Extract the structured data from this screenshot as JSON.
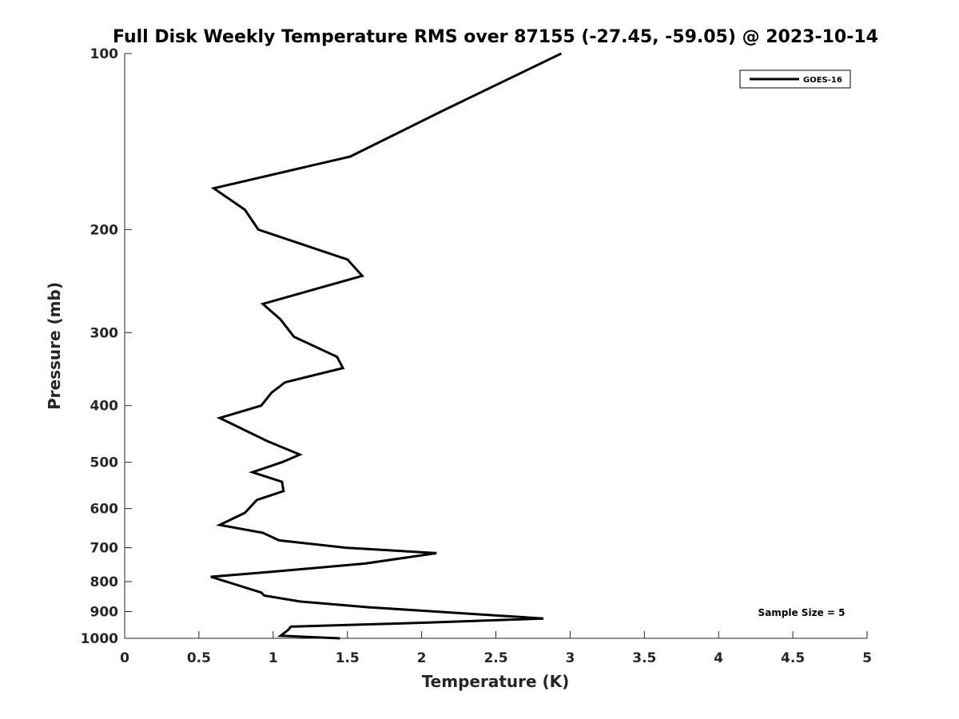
{
  "chart_data": {
    "type": "line",
    "title": "Full Disk Weekly Temperature RMS over 87155 (-27.45, -59.05) @ 2023-10-14",
    "xlabel": "Temperature (K)",
    "ylabel": "Pressure (mb)",
    "xlim": [
      0,
      5
    ],
    "ylim": [
      100,
      1000
    ],
    "y_scale": "log",
    "y_reversed": true,
    "x_ticks": [
      "0",
      "0.5",
      "1",
      "1.5",
      "2",
      "2.5",
      "3",
      "3.5",
      "4",
      "4.5",
      "5"
    ],
    "y_ticks": [
      "100",
      "200",
      "300",
      "400",
      "500",
      "600",
      "700",
      "800",
      "900",
      "1000"
    ],
    "grid": false,
    "legend_position": "top-right",
    "annotation": "Sample Size = 5",
    "series": [
      {
        "name": "GOES-16",
        "color": "#000000",
        "x": [
          2.94,
          2.15,
          1.52,
          0.6,
          0.81,
          0.9,
          1.5,
          1.6,
          0.93,
          1.05,
          1.14,
          1.43,
          1.47,
          1.08,
          0.99,
          0.92,
          0.64,
          0.96,
          1.18,
          1.06,
          0.86,
          1.06,
          1.07,
          0.89,
          0.81,
          0.64,
          0.93,
          1.04,
          1.49,
          2.1,
          1.62,
          0.98,
          0.58,
          0.92,
          0.94,
          1.18,
          1.65,
          2.82,
          2.05,
          1.12,
          1.1,
          1.05,
          1.45
        ],
        "y": [
          100,
          125,
          150,
          170,
          185,
          200,
          225,
          240,
          268,
          285,
          305,
          330,
          345,
          365,
          380,
          400,
          420,
          460,
          485,
          500,
          520,
          540,
          560,
          580,
          610,
          640,
          660,
          680,
          700,
          715,
          745,
          770,
          785,
          835,
          845,
          865,
          885,
          925,
          940,
          955,
          968,
          990,
          1000
        ]
      }
    ]
  }
}
